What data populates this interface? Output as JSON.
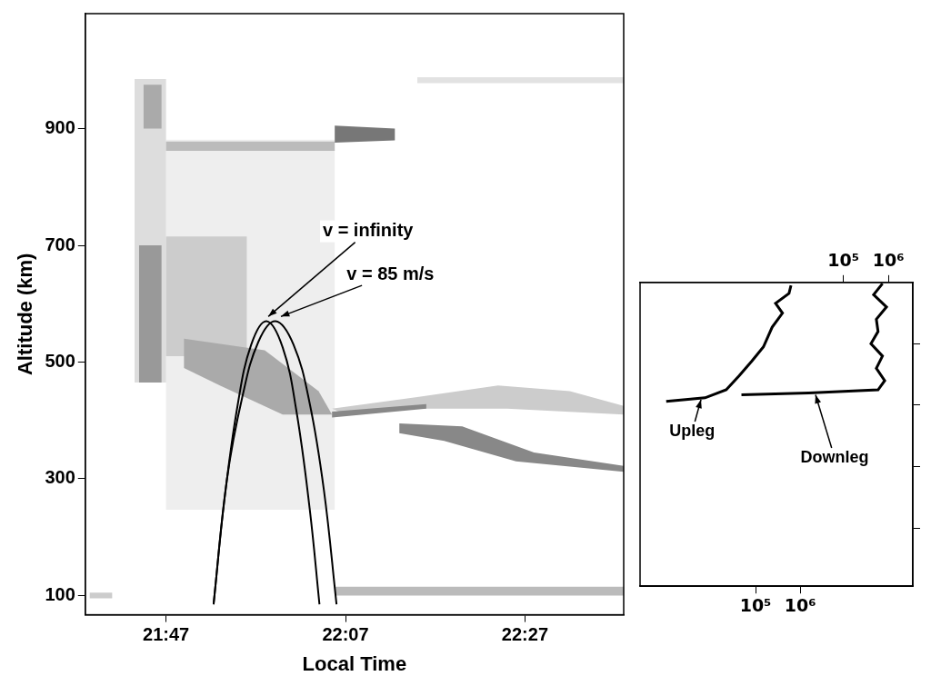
{
  "chart_data": [
    {
      "type": "line",
      "xlabel": "Local Time",
      "ylabel": "Altitude (km)",
      "xlim": [
        1298,
        1358
      ],
      "xticks": [
        {
          "value": 1307,
          "label": "21:47"
        },
        {
          "value": 1327,
          "label": "22:07"
        },
        {
          "value": 1347,
          "label": "22:27"
        }
      ],
      "ylim": [
        67,
        1097
      ],
      "yticks": [
        100,
        300,
        500,
        700,
        900
      ],
      "grid": false,
      "echoes": [
        {
          "color": "#eeeeee",
          "points": [
            [
              1307,
              247
            ],
            [
              1325.8,
              247
            ],
            [
              1325.8,
              881
            ],
            [
              1307,
              881
            ]
          ]
        },
        {
          "color": "#dddddd",
          "points": [
            [
              1303.5,
              465
            ],
            [
              1307,
              465
            ],
            [
              1307,
              985
            ],
            [
              1303.5,
              985
            ]
          ]
        },
        {
          "color": "#999999",
          "points": [
            [
              1304,
              465
            ],
            [
              1306.5,
              465
            ],
            [
              1306.5,
              700
            ],
            [
              1304,
              700
            ]
          ]
        },
        {
          "color": "#aaaaaa",
          "points": [
            [
              1304.5,
              900
            ],
            [
              1306.5,
              900
            ],
            [
              1306.5,
              975
            ],
            [
              1304.5,
              975
            ]
          ]
        },
        {
          "color": "#cccccc",
          "points": [
            [
              1307,
              510
            ],
            [
              1316,
              510
            ],
            [
              1316,
              715
            ],
            [
              1307,
              715
            ]
          ]
        },
        {
          "color": "#bbbbbb",
          "points": [
            [
              1307,
              862
            ],
            [
              1325.8,
              862
            ],
            [
              1325.8,
              878
            ],
            [
              1307,
              878
            ]
          ]
        },
        {
          "color": "#aaaaaa",
          "points": [
            [
              1309,
              540
            ],
            [
              1318,
              520
            ],
            [
              1324,
              450
            ],
            [
              1325.5,
              410
            ],
            [
              1320,
              410
            ],
            [
              1313,
              460
            ],
            [
              1309,
              490
            ]
          ]
        },
        {
          "color": "#777777",
          "points": [
            [
              1325.8,
              876
            ],
            [
              1332.5,
              880
            ],
            [
              1332.5,
              900
            ],
            [
              1325.8,
              905
            ]
          ]
        },
        {
          "color": "#cccccc",
          "points": [
            [
              1325.5,
              420
            ],
            [
              1335,
              440
            ],
            [
              1344,
              460
            ],
            [
              1352,
              450
            ],
            [
              1358,
              425
            ],
            [
              1358,
              410
            ],
            [
              1345,
              420
            ],
            [
              1335,
              420
            ],
            [
              1327,
              410
            ]
          ]
        },
        {
          "color": "#888888",
          "points": [
            [
              1325.5,
              405
            ],
            [
              1336,
              420
            ],
            [
              1336,
              428
            ],
            [
              1325.5,
              415
            ]
          ]
        },
        {
          "color": "#888888",
          "points": [
            [
              1333,
              395
            ],
            [
              1340,
              390
            ],
            [
              1348,
              345
            ],
            [
              1358,
              322
            ],
            [
              1358,
              312
            ],
            [
              1346,
              330
            ],
            [
              1338,
              365
            ],
            [
              1333,
              378
            ]
          ]
        },
        {
          "color": "#bbbbbb",
          "points": [
            [
              1325.8,
              100
            ],
            [
              1358,
              100
            ],
            [
              1358,
              115
            ],
            [
              1325.8,
              115
            ]
          ]
        },
        {
          "color": "#cccccc",
          "points": [
            [
              1298.5,
              95
            ],
            [
              1301,
              95
            ],
            [
              1301,
              105
            ],
            [
              1298.5,
              105
            ]
          ]
        },
        {
          "color": "#e2e2e2",
          "points": [
            [
              1335,
              978
            ],
            [
              1358,
              978
            ],
            [
              1358,
              988
            ],
            [
              1335,
              988
            ]
          ]
        }
      ],
      "series": [
        {
          "name": "v = infinity",
          "color": "#000000",
          "x": [
            1312.3,
            1313.5,
            1315,
            1316.5,
            1318.2,
            1320,
            1321.5,
            1323,
            1324.1
          ],
          "values": [
            85,
            263,
            428,
            530,
            570,
            525,
            419,
            250,
            85
          ],
          "label_position": {
            "x": 1329.5,
            "y": 724
          },
          "arrow_to": {
            "x": 1318.4,
            "y": 578
          }
        },
        {
          "name": "v = 85 m/s",
          "color": "#000000",
          "x": [
            1312.3,
            1313.8,
            1315.5,
            1317.3,
            1319.2,
            1321.2,
            1323,
            1324.6,
            1326
          ],
          "values": [
            85,
            300,
            440,
            535,
            570,
            530,
            430,
            280,
            85
          ],
          "label_position": {
            "x": 1332,
            "y": 650
          },
          "arrow_to": {
            "x": 1319.8,
            "y": 578
          }
        }
      ]
    },
    {
      "type": "line",
      "log": "x",
      "grid": false,
      "tick_labels": "x",
      "xlim": [
        260,
        330000000
      ],
      "xticks": [
        {
          "value": 100000,
          "label": "10⁵"
        },
        {
          "value": 1000000,
          "label": "10⁶"
        }
      ],
      "x2lim": [
        3,
        3500000
      ],
      "x2ticks": [
        {
          "value": 100000,
          "label": "10⁵"
        },
        {
          "value": 1000000,
          "label": "10⁶"
        }
      ],
      "ylim": [
        105,
        600
      ],
      "yticks": [
        200,
        300,
        400,
        500
      ],
      "series": [
        {
          "name": "Upleg",
          "color": "#000000",
          "x": [
            1000,
            7400,
            22000,
            43000,
            83000,
            150000,
            235000,
            400000,
            280000,
            560000,
            620000
          ],
          "values": [
            406,
            412,
            425,
            448,
            472,
            495,
            527,
            550,
            566,
            582,
            595
          ],
          "label_position": {
            "x": 3800,
            "y": 357
          },
          "arrow_to": {
            "x": 6000,
            "y": 409
          }
        },
        {
          "name": "Downleg",
          "color": "#000000",
          "axis": "x2",
          "x": [
            740000,
            470000,
            910000,
            540000,
            590000,
            410000,
            740000,
            540000,
            830000,
            590000,
            17000,
            540
          ],
          "values": [
            598,
            580,
            560,
            540,
            520,
            500,
            480,
            460,
            440,
            425,
            420,
            417
          ],
          "label_position": {
            "x": 64000,
            "y": 314
          },
          "arrow_to": {
            "x": 24000,
            "y": 417
          }
        }
      ]
    }
  ]
}
